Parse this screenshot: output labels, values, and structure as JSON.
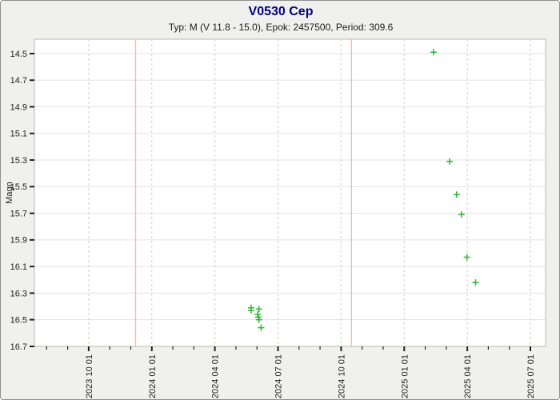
{
  "header": {
    "title": "V0530 Cep",
    "subtitle": "Typ: M (V 11.8 - 15.0), Epok: 2457500, Period: 309.6"
  },
  "chart_data": {
    "type": "scatter",
    "title": "V0530 Cep",
    "subtitle": "Typ: M (V 11.8 - 15.0), Epok: 2457500, Period: 309.6",
    "star": {
      "name": "V0530 Cep",
      "variability_type": "M",
      "v_range": "11.8 - 15.0",
      "epoch": "2457500",
      "period": "309.6"
    },
    "ylabel": "Magn",
    "xlabel": "",
    "grid": true,
    "legend": "none",
    "y_axis": {
      "inverted": true,
      "ticks": [
        14.5,
        14.7,
        14.9,
        15.1,
        15.3,
        15.5,
        15.7,
        15.9,
        16.1,
        16.3,
        16.5,
        16.7
      ],
      "top_value": 14.39,
      "bottom_value": 16.7
    },
    "x_axis": {
      "minor_tick_interval": "1 month",
      "range": [
        "2023-07-14",
        "2025-07-23"
      ],
      "major_ticks": [
        {
          "date": "2023-10-01",
          "label": "2023 10 01"
        },
        {
          "date": "2024-01-01",
          "label": "2024 01 01"
        },
        {
          "date": "2024-04-01",
          "label": "2024 04 01"
        },
        {
          "date": "2024-07-01",
          "label": "2024 07 01"
        },
        {
          "date": "2024-10-01",
          "label": "2024 10 01"
        },
        {
          "date": "2025-01-01",
          "label": "2025 01 01"
        },
        {
          "date": "2025-04-01",
          "label": "2025 04 01"
        },
        {
          "date": "2025-07-01",
          "label": "2025 07 01"
        }
      ]
    },
    "marker": {
      "shape": "plus",
      "color": "#32b432",
      "size": 9
    },
    "series": [
      {
        "name": "observations",
        "points": [
          {
            "date": "2024-05-23",
            "mag": 16.41
          },
          {
            "date": "2024-05-23",
            "mag": 16.43
          },
          {
            "date": "2024-06-04",
            "mag": 16.42
          },
          {
            "date": "2024-06-02",
            "mag": 16.46
          },
          {
            "date": "2024-06-03",
            "mag": 16.48
          },
          {
            "date": "2024-06-04",
            "mag": 16.5
          },
          {
            "date": "2024-06-07",
            "mag": 16.56
          },
          {
            "date": "2025-02-13",
            "mag": 14.49
          },
          {
            "date": "2025-03-06",
            "mag": 15.31
          },
          {
            "date": "2025-03-16",
            "mag": 15.56
          },
          {
            "date": "2025-03-23",
            "mag": 15.71
          },
          {
            "date": "2025-03-31",
            "mag": 16.03
          },
          {
            "date": "2025-04-13",
            "mag": 16.22
          }
        ]
      }
    ],
    "period_markers": {
      "color": "#f3b8b8",
      "dates": [
        "2023-12-08",
        "2024-10-16"
      ]
    },
    "colors": {
      "title": "#000082",
      "page_bg": "#f0f0ee",
      "plot_bg": "#ffffff",
      "plot_border": "#b8b8b8",
      "grid_horizontal": "#e3e3e3",
      "grid_vertical": "#cfcfcf",
      "tick": "#222222"
    }
  }
}
